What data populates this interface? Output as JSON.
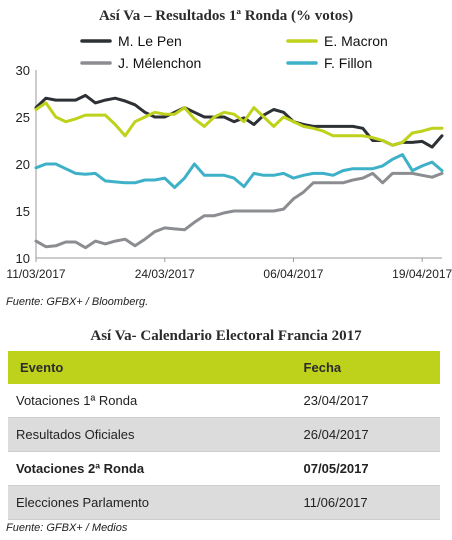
{
  "chart_title": "Así Va – Resultados 1ª Ronda (% votos)",
  "chart_source": "Fuente: GFBX+ / Bloomberg.",
  "chart_data": {
    "type": "line",
    "title": "Así Va – Resultados 1ª Ronda (% votos)",
    "xlabel": "",
    "ylabel": "",
    "ylim": [
      10,
      30
    ],
    "yticks": [
      10,
      15,
      20,
      25,
      30
    ],
    "x_tick_labels": [
      "11/03/2017",
      "24/03/2017",
      "06/04/2017",
      "19/04/2017"
    ],
    "x_tick_index": [
      0,
      13,
      26,
      39
    ],
    "grid": false,
    "legend_position": "top",
    "series": [
      {
        "name": "M. Le Pen",
        "color": "#2d3035",
        "values": [
          26,
          27,
          26.8,
          26.8,
          26.8,
          27.3,
          26.5,
          26.8,
          27,
          26.7,
          26.3,
          25.5,
          25,
          25,
          25.5,
          26,
          25.5,
          25,
          25,
          25,
          24.5,
          24.9,
          24.2,
          25.2,
          25.8,
          25.5,
          24.5,
          24.2,
          24,
          24,
          24,
          24,
          24,
          23.8,
          22.5,
          22.5,
          22,
          22.3,
          22.3,
          22.4,
          21.8,
          23
        ]
      },
      {
        "name": "E. Macron",
        "color": "#bfd21b",
        "values": [
          25.8,
          26.5,
          25,
          24.5,
          24.8,
          25.2,
          25.2,
          25.2,
          24.2,
          23,
          24.5,
          25,
          25.5,
          25.3,
          25.3,
          26,
          24.8,
          24,
          25,
          25.5,
          25.3,
          24.5,
          26,
          25,
          24,
          25,
          24.5,
          24,
          23.8,
          23.5,
          23,
          23,
          23,
          23,
          22.8,
          22.5,
          22,
          22.3,
          23.3,
          23.5,
          23.8,
          23.8
        ]
      },
      {
        "name": "J. Mélenchon",
        "color": "#8b8d91",
        "values": [
          11.8,
          11.2,
          11.3,
          11.7,
          11.7,
          11.1,
          11.8,
          11.5,
          11.8,
          12,
          11.3,
          12,
          12.8,
          13.2,
          13.1,
          13,
          13.8,
          14.5,
          14.5,
          14.8,
          15,
          15,
          15,
          15,
          15,
          15.2,
          16.3,
          17,
          18,
          18,
          18,
          18,
          18.3,
          18.5,
          19,
          18,
          19,
          19,
          19,
          18.8,
          18.6,
          19
        ]
      },
      {
        "name": "F. Fillon",
        "color": "#3eb1c8",
        "values": [
          19.6,
          20,
          20,
          19.5,
          19,
          18.9,
          19,
          18.2,
          18.1,
          18,
          18,
          18.3,
          18.3,
          18.5,
          17.5,
          18.5,
          20,
          18.8,
          18.8,
          18.8,
          18.5,
          17.6,
          19,
          18.8,
          18.8,
          19,
          18.5,
          18.8,
          19,
          19,
          18.8,
          19.3,
          19.5,
          19.5,
          19.5,
          19.8,
          20.5,
          21,
          19.3,
          19.8,
          20.2,
          19.3
        ]
      }
    ]
  },
  "table_title": "Así Va- Calendario Electoral Francia 2017",
  "table": {
    "headers": [
      "Evento",
      "Fecha"
    ],
    "rows": [
      {
        "evento": "Votaciones 1ª Ronda",
        "fecha": "23/04/2017"
      },
      {
        "evento": "Resultados Oficiales",
        "fecha": "26/04/2017"
      },
      {
        "evento": "Votaciones 2ª Ronda",
        "fecha": "07/05/2017"
      },
      {
        "evento": "Elecciones Parlamento",
        "fecha": "11/06/2017"
      }
    ]
  },
  "table_source": "Fuente: GFBX+ / Medios",
  "colors": {
    "accent": "#bfd21b",
    "row_shade": "#dcdcdc"
  }
}
